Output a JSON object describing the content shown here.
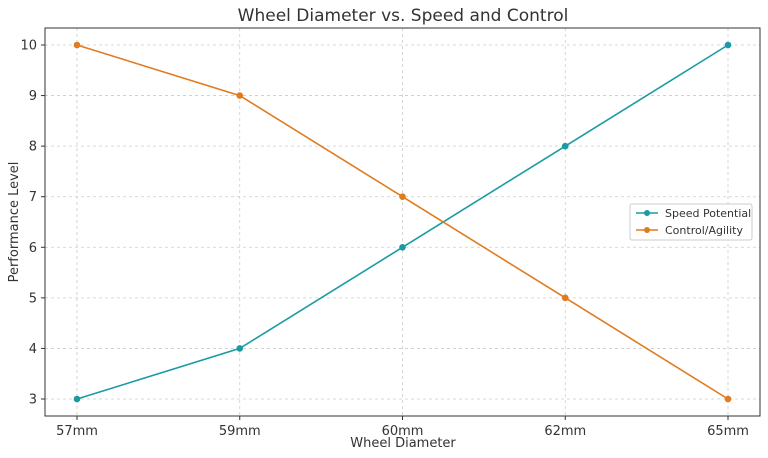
{
  "chart_data": {
    "type": "line",
    "title": "Wheel Diameter vs. Speed and Control",
    "xlabel": "Wheel Diameter",
    "ylabel": "Performance Level",
    "categories": [
      "57mm",
      "59mm",
      "60mm",
      "62mm",
      "65mm"
    ],
    "ylim": [
      3,
      10
    ],
    "yticks": [
      3,
      4,
      5,
      6,
      7,
      8,
      9,
      10
    ],
    "grid": true,
    "legend_position": "center-right",
    "series": [
      {
        "name": "Speed Potential",
        "values": [
          3,
          4,
          6,
          8,
          10
        ],
        "color": "#1a9ba3"
      },
      {
        "name": "Control/Agility",
        "values": [
          10,
          9,
          7,
          5,
          3
        ],
        "color": "#e07b20"
      }
    ]
  }
}
